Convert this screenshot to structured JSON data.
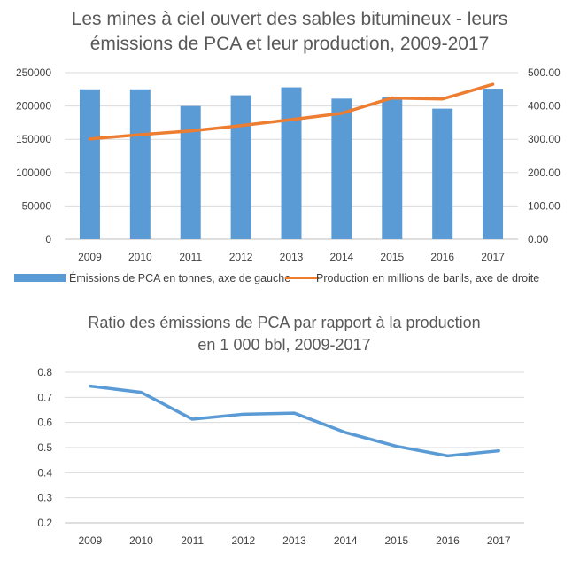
{
  "chart_data": [
    {
      "type": "bar+line",
      "title_line1": "Les mines à ciel ouvert des sables bitumineux - leurs",
      "title_line2": "émissions de PCA et leur production, 2009-2017",
      "categories": [
        "2009",
        "2010",
        "2011",
        "2012",
        "2013",
        "2014",
        "2015",
        "2016",
        "2017"
      ],
      "series": [
        {
          "name": "Émissions de PCA en tonnes, axe de gauche",
          "type": "bar",
          "axis": "left",
          "color": "#5b9bd5",
          "values": [
            225000,
            225000,
            200000,
            216000,
            228000,
            211000,
            213000,
            196000,
            226000
          ]
        },
        {
          "name": "Production en millions de barils, axe de droite",
          "type": "line",
          "axis": "right",
          "color": "#ed7d31",
          "values": [
            301,
            314,
            325,
            341,
            359,
            378,
            424,
            421,
            465
          ]
        }
      ],
      "y_left": {
        "min": 0,
        "max": 250000,
        "ticks": [
          "0",
          "50000",
          "100000",
          "150000",
          "200000",
          "250000"
        ]
      },
      "y_right": {
        "min": 0,
        "max": 500,
        "ticks": [
          "0.00",
          "100.00",
          "200.00",
          "300.00",
          "400.00",
          "500.00"
        ]
      },
      "grid": true,
      "legend_position": "bottom"
    },
    {
      "type": "line",
      "title_line1": "Ratio des émissions de PCA par rapport à la production",
      "title_line2": "en 1 000 bbl, 2009-2017",
      "categories": [
        "2009",
        "2010",
        "2011",
        "2012",
        "2013",
        "2014",
        "2015",
        "2016",
        "2017"
      ],
      "series": [
        {
          "color": "#5b9bd5",
          "values": [
            0.745,
            0.72,
            0.613,
            0.633,
            0.637,
            0.56,
            0.505,
            0.467,
            0.487
          ]
        }
      ],
      "y": {
        "min": 0.2,
        "max": 0.8,
        "ticks": [
          "0.2",
          "0.3",
          "0.4",
          "0.5",
          "0.6",
          "0.7",
          "0.8"
        ]
      },
      "grid": true,
      "legend_position": "none"
    }
  ]
}
